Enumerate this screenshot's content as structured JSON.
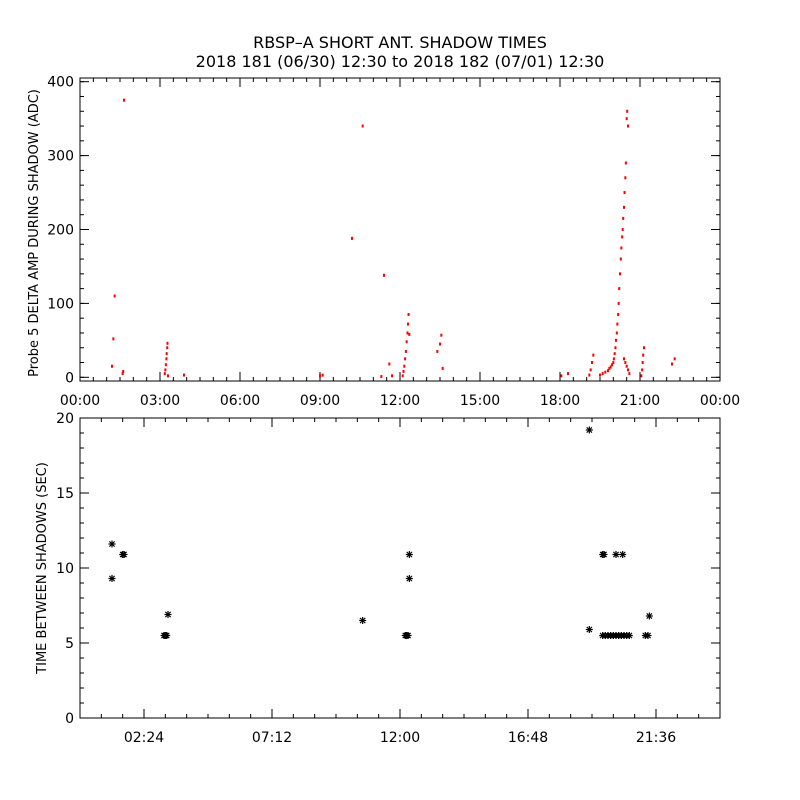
{
  "title_lines": [
    "RBSP–A SHORT ANT. SHADOW TIMES",
    "2018 181 (06/30) 12:30 to 2018 182 (07/01) 12:30"
  ],
  "colors": {
    "background": "#ffffff",
    "axes": "#000000",
    "top_points": "#ff0000",
    "bottom_points": "#000000"
  },
  "chart_data": [
    {
      "type": "scatter",
      "panel": "top",
      "ylabel": "Probe 5 DELTA AMP DURING SHADOW (ADC)",
      "xlabel": "",
      "x_units": "hours",
      "xlim": [
        0,
        24
      ],
      "ylim": [
        -5,
        405
      ],
      "grid": false,
      "x_tick_values": [
        0,
        3,
        6,
        9,
        12,
        15,
        18,
        21,
        24
      ],
      "x_tick_labels": [
        "00:00",
        "03:00",
        "06:00",
        "09:00",
        "12:00",
        "15:00",
        "18:00",
        "21:00",
        "00:00"
      ],
      "y_tick_values": [
        0,
        100,
        200,
        300,
        400
      ],
      "y_tick_labels": [
        "0",
        "100",
        "200",
        "300",
        "400"
      ],
      "marker": "dot",
      "points": [
        [
          1.2,
          15
        ],
        [
          1.25,
          52
        ],
        [
          1.3,
          110
        ],
        [
          1.6,
          5
        ],
        [
          1.62,
          8
        ],
        [
          1.65,
          375
        ],
        [
          3.18,
          5
        ],
        [
          3.2,
          10
        ],
        [
          3.22,
          17
        ],
        [
          3.24,
          25
        ],
        [
          3.25,
          32
        ],
        [
          3.27,
          40
        ],
        [
          3.28,
          46
        ],
        [
          3.3,
          2
        ],
        [
          3.9,
          3
        ],
        [
          9.0,
          2
        ],
        [
          9.1,
          3
        ],
        [
          10.2,
          188
        ],
        [
          10.6,
          340
        ],
        [
          11.4,
          138
        ],
        [
          11.6,
          18
        ],
        [
          11.3,
          1
        ],
        [
          11.7,
          2
        ],
        [
          12.1,
          2
        ],
        [
          12.13,
          8
        ],
        [
          12.16,
          15
        ],
        [
          12.19,
          25
        ],
        [
          12.22,
          35
        ],
        [
          12.25,
          48
        ],
        [
          12.28,
          60
        ],
        [
          12.3,
          72
        ],
        [
          12.32,
          85
        ],
        [
          12.35,
          58
        ],
        [
          13.4,
          35
        ],
        [
          13.5,
          45
        ],
        [
          13.55,
          57
        ],
        [
          13.6,
          12
        ],
        [
          18.05,
          2
        ],
        [
          18.3,
          5
        ],
        [
          19.1,
          3
        ],
        [
          19.15,
          10
        ],
        [
          19.2,
          20
        ],
        [
          19.25,
          30
        ],
        [
          19.5,
          3
        ],
        [
          19.6,
          5
        ],
        [
          19.7,
          7
        ],
        [
          19.8,
          9
        ],
        [
          19.85,
          12
        ],
        [
          19.9,
          14
        ],
        [
          19.95,
          17
        ],
        [
          20.0,
          20
        ],
        [
          20.02,
          25
        ],
        [
          20.05,
          32
        ],
        [
          20.08,
          40
        ],
        [
          20.1,
          50
        ],
        [
          20.13,
          60
        ],
        [
          20.15,
          72
        ],
        [
          20.18,
          85
        ],
        [
          20.2,
          100
        ],
        [
          20.22,
          120
        ],
        [
          20.25,
          140
        ],
        [
          20.28,
          160
        ],
        [
          20.3,
          175
        ],
        [
          20.33,
          190
        ],
        [
          20.35,
          200
        ],
        [
          20.37,
          215
        ],
        [
          20.4,
          230
        ],
        [
          20.42,
          250
        ],
        [
          20.45,
          270
        ],
        [
          20.47,
          290
        ],
        [
          20.5,
          350
        ],
        [
          20.52,
          360
        ],
        [
          20.55,
          340
        ],
        [
          20.4,
          25
        ],
        [
          20.45,
          20
        ],
        [
          20.5,
          15
        ],
        [
          20.55,
          10
        ],
        [
          20.6,
          5
        ],
        [
          21.05,
          2
        ],
        [
          21.08,
          10
        ],
        [
          21.1,
          20
        ],
        [
          21.12,
          30
        ],
        [
          21.15,
          40
        ],
        [
          22.2,
          18
        ],
        [
          22.3,
          25
        ]
      ]
    },
    {
      "type": "scatter",
      "panel": "bottom",
      "ylabel": "TIME BETWEEN SHADOWS (SEC)",
      "xlabel": "",
      "x_units": "hours",
      "xlim": [
        0,
        24
      ],
      "ylim": [
        0,
        20
      ],
      "grid": false,
      "x_tick_values": [
        2.4,
        7.2,
        12.0,
        16.8,
        21.6
      ],
      "x_tick_labels": [
        "02:24",
        "07:12",
        "12:00",
        "16:48",
        "21:36"
      ],
      "y_tick_values": [
        0,
        5,
        10,
        15,
        20
      ],
      "y_tick_labels": [
        "0",
        "5",
        "10",
        "15",
        "20"
      ],
      "marker": "asterisk",
      "points": [
        [
          1.2,
          11.6
        ],
        [
          1.2,
          9.3
        ],
        [
          1.6,
          10.9
        ],
        [
          1.65,
          10.9
        ],
        [
          3.15,
          5.5
        ],
        [
          3.2,
          5.5
        ],
        [
          3.25,
          5.5
        ],
        [
          3.3,
          6.9
        ],
        [
          10.6,
          6.5
        ],
        [
          12.2,
          5.5
        ],
        [
          12.25,
          5.5
        ],
        [
          12.3,
          5.5
        ],
        [
          12.35,
          10.9
        ],
        [
          12.35,
          9.3
        ],
        [
          19.1,
          19.2
        ],
        [
          19.1,
          5.9
        ],
        [
          19.6,
          10.9
        ],
        [
          19.65,
          10.9
        ],
        [
          19.6,
          5.5
        ],
        [
          19.7,
          5.5
        ],
        [
          19.8,
          5.5
        ],
        [
          19.9,
          5.5
        ],
        [
          20.0,
          5.5
        ],
        [
          20.1,
          5.5
        ],
        [
          20.2,
          5.5
        ],
        [
          20.3,
          5.5
        ],
        [
          20.4,
          5.5
        ],
        [
          20.5,
          5.5
        ],
        [
          20.6,
          5.5
        ],
        [
          20.1,
          10.9
        ],
        [
          20.35,
          10.9
        ],
        [
          21.2,
          5.5
        ],
        [
          21.3,
          5.5
        ],
        [
          21.35,
          6.8
        ]
      ]
    }
  ]
}
